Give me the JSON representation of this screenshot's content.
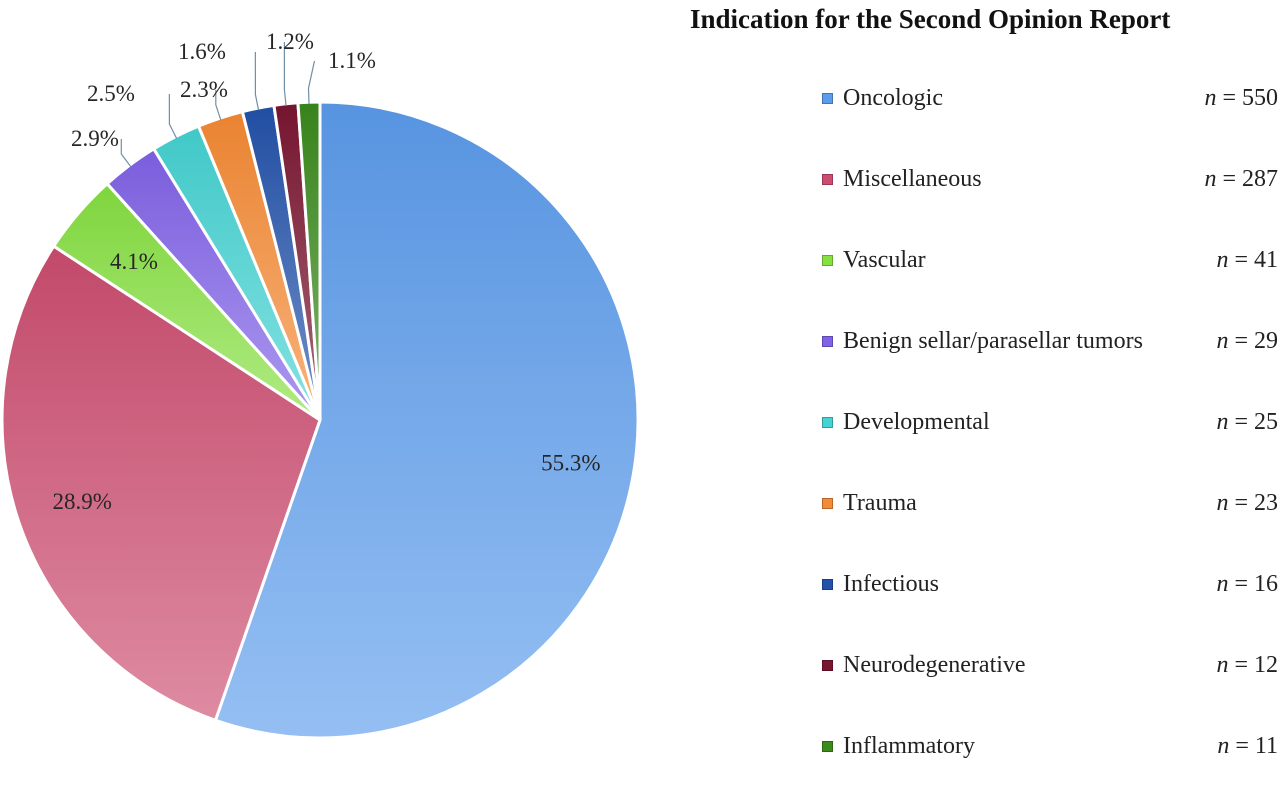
{
  "chart_data": {
    "type": "pie",
    "title": "Indication for the Second Opinion Report",
    "legend_position": "right",
    "slices": [
      {
        "name": "Oncologic",
        "n": 550,
        "percent_label": "55.3%",
        "color": "#5c9cec"
      },
      {
        "name": "Miscellaneous",
        "n": 287,
        "percent_label": "28.9%",
        "color": "#cc4d70"
      },
      {
        "name": "Vascular",
        "n": 41,
        "percent_label": "4.1%",
        "color": "#86e040"
      },
      {
        "name": "Benign sellar/parasellar tumors",
        "n": 29,
        "percent_label": "2.9%",
        "color": "#8062e8"
      },
      {
        "name": "Developmental",
        "n": 25,
        "percent_label": "2.5%",
        "color": "#44d2d2"
      },
      {
        "name": "Trauma",
        "n": 23,
        "percent_label": "2.3%",
        "color": "#f58a34"
      },
      {
        "name": "Infectious",
        "n": 16,
        "percent_label": "1.6%",
        "color": "#2352aa"
      },
      {
        "name": "Neurodegenerative",
        "n": 12,
        "percent_label": "1.2%",
        "color": "#7a1530"
      },
      {
        "name": "Inflammatory",
        "n": 11,
        "percent_label": "1.1%",
        "color": "#3a8a1c"
      }
    ]
  }
}
